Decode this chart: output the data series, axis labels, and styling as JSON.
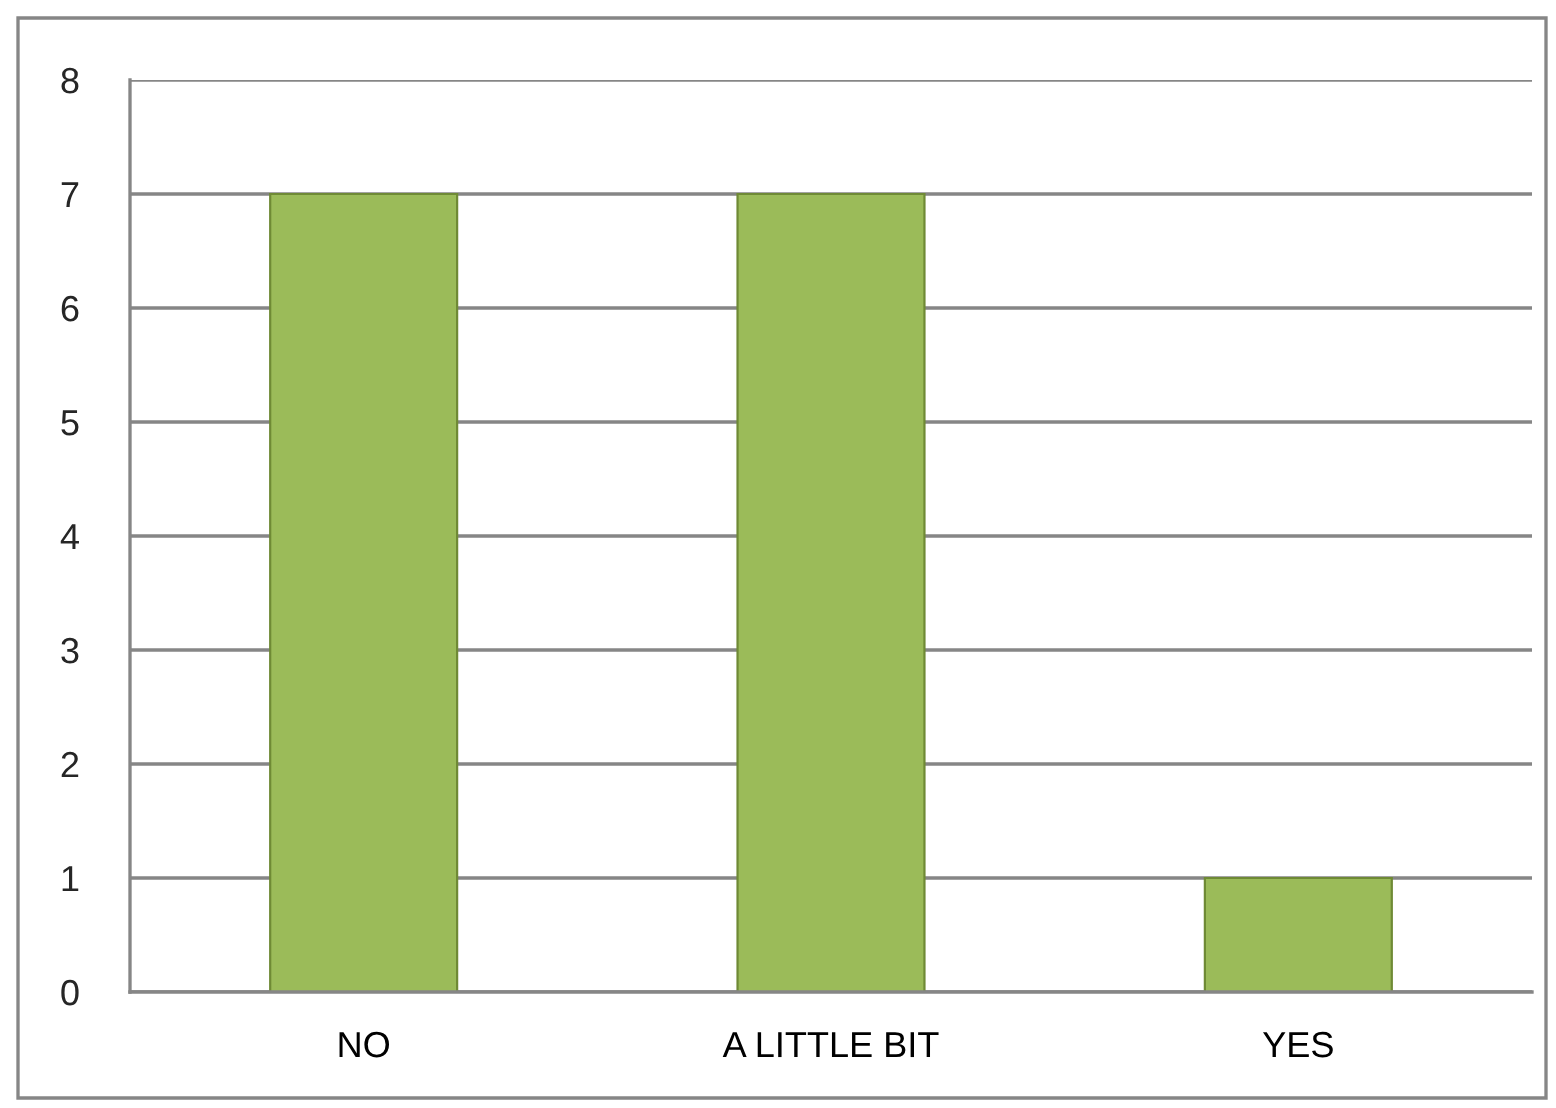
{
  "chart_data": {
    "type": "bar",
    "categories": [
      "NO",
      "A LITTLE BIT",
      "YES"
    ],
    "values": [
      7,
      7,
      1
    ],
    "color": "#9bbb59",
    "ylim": [
      0,
      8
    ],
    "yticks": [
      0,
      1,
      2,
      3,
      4,
      5,
      6,
      7,
      8
    ],
    "grid": "y"
  }
}
